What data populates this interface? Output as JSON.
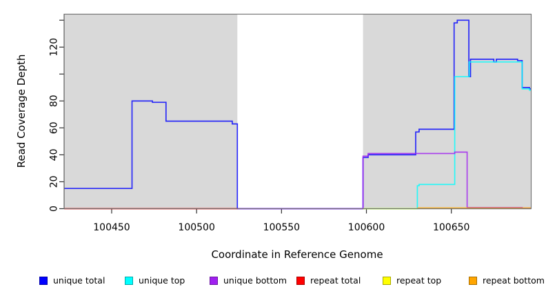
{
  "chart_data": {
    "type": "line",
    "subtype": "step-coverage-plot",
    "title": "",
    "xlabel": "Coordinate in Reference Genome",
    "ylabel": "Read Coverage Depth",
    "xlim": [
      100422,
      100697
    ],
    "ylim": [
      0,
      144.5
    ],
    "grid": false,
    "background_color": "#ffffff",
    "shaded_region_color": "#d9d9d9",
    "shaded_regions": [
      {
        "name": "left-gray-region",
        "x0": 100422,
        "x1": 100524
      },
      {
        "name": "right-gray-region",
        "x0": 100598,
        "x1": 100697
      }
    ],
    "x_ticks": [
      {
        "v": 100450,
        "label": "100450"
      },
      {
        "v": 100500,
        "label": "100500"
      },
      {
        "v": 100550,
        "label": "100550"
      },
      {
        "v": 100600,
        "label": "100600"
      },
      {
        "v": 100650,
        "label": "100650"
      }
    ],
    "y_ticks": [
      {
        "v": 0,
        "label": "0"
      },
      {
        "v": 20,
        "label": "20"
      },
      {
        "v": 40,
        "label": "40"
      },
      {
        "v": 60,
        "label": "60"
      },
      {
        "v": 80,
        "label": "80"
      },
      {
        "v": 100,
        "label": ""
      },
      {
        "v": 120,
        "label": "120"
      },
      {
        "v": 140,
        "label": ""
      }
    ],
    "series": [
      {
        "name": "unique total",
        "color": "#0000ff",
        "steps": [
          [
            100422,
            15
          ],
          [
            100462,
            80
          ],
          [
            100474,
            79
          ],
          [
            100482,
            65
          ],
          [
            100521,
            63
          ],
          [
            100524,
            0
          ],
          [
            100598,
            38
          ],
          [
            100601,
            40
          ],
          [
            100629,
            57
          ],
          [
            100631,
            59
          ],
          [
            100651.6,
            138
          ],
          [
            100653.5,
            140
          ],
          [
            100660.3,
            98
          ],
          [
            100661.3,
            111
          ],
          [
            100675,
            109
          ],
          [
            100676.5,
            111
          ],
          [
            100689,
            110
          ],
          [
            100691.7,
            90
          ],
          [
            100696,
            89
          ],
          [
            100697,
            89
          ]
        ]
      },
      {
        "name": "unique top",
        "color": "#00ffff",
        "steps": [
          [
            100598,
            0
          ],
          [
            100630,
            17
          ],
          [
            100631,
            18
          ],
          [
            100652,
            98
          ],
          [
            100660.5,
            109
          ],
          [
            100691.7,
            89
          ],
          [
            100696,
            88
          ],
          [
            100697,
            88
          ]
        ]
      },
      {
        "name": "unique bottom",
        "color": "#a020f0",
        "steps": [
          [
            100524,
            0
          ],
          [
            100598,
            39
          ],
          [
            100601,
            41
          ],
          [
            100652,
            42
          ],
          [
            100659.3,
            0.8
          ],
          [
            100691.7,
            0.3
          ],
          [
            100697,
            0.3
          ]
        ]
      },
      {
        "name": "repeat total",
        "color": "#ff0000",
        "steps": [
          [
            100422,
            0
          ],
          [
            100524,
            0
          ]
        ]
      },
      {
        "name": "repeat top",
        "color": "#ffff00",
        "steps": [
          [
            100598,
            0
          ],
          [
            100630,
            0
          ]
        ]
      },
      {
        "name": "repeat bottom",
        "color": "#ffa500",
        "steps": [
          [
            100630,
            0.5
          ],
          [
            100697,
            0.5
          ]
        ]
      }
    ]
  },
  "legend": {
    "items": [
      {
        "label": "unique total",
        "color": "#0000ff",
        "border": "#0000a8"
      },
      {
        "label": "unique top",
        "color": "#00ffff",
        "border": "#00a8a8"
      },
      {
        "label": "unique bottom",
        "color": "#a020f0",
        "border": "#6c15a2"
      },
      {
        "label": "repeat total",
        "color": "#ff0000",
        "border": "#a80000"
      },
      {
        "label": "repeat top",
        "color": "#ffff00",
        "border": "#a8a800"
      },
      {
        "label": "repeat bottom",
        "color": "#ffa500",
        "border": "#a86e00"
      }
    ]
  }
}
